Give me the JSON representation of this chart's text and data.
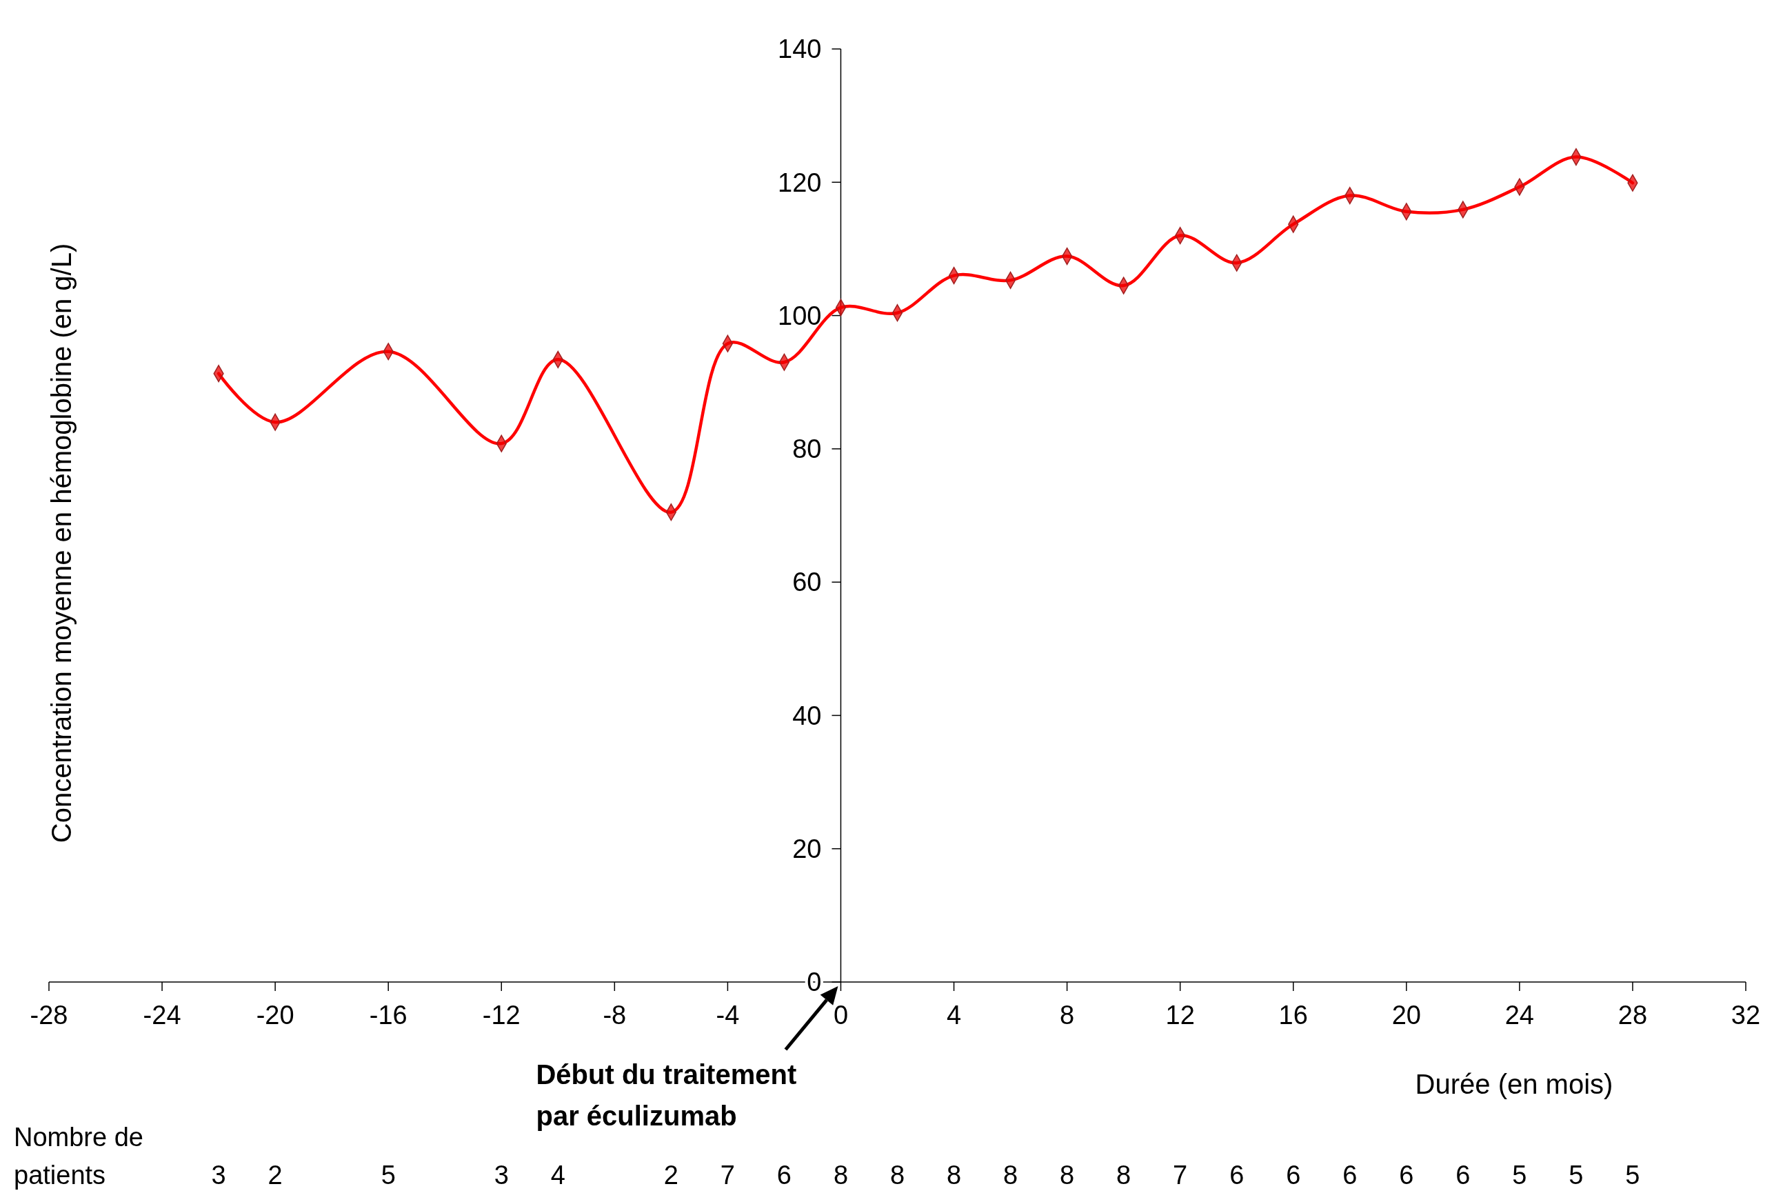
{
  "chart_data": {
    "type": "line",
    "x": [
      -22,
      -20,
      -16,
      -12,
      -10,
      -6,
      -4,
      -2,
      0,
      2,
      4,
      6,
      8,
      10,
      12,
      14,
      16,
      18,
      20,
      22,
      24,
      26,
      28
    ],
    "series": [
      {
        "color": "#ff0000",
        "values": [
          91.3,
          84.0,
          94.6,
          80.8,
          93.4,
          70.5,
          95.8,
          93.0,
          101.2,
          100.4,
          106.0,
          105.3,
          108.9,
          104.5,
          112.0,
          107.9,
          113.7,
          118.0,
          115.6,
          115.9,
          119.3,
          123.8,
          119.9
        ]
      }
    ],
    "marker": "diamond",
    "xlim": [
      -28,
      32
    ],
    "xticks": [
      -28,
      -24,
      -20,
      -16,
      -12,
      -8,
      -4,
      0,
      4,
      8,
      12,
      16,
      20,
      24,
      28,
      32
    ],
    "ylim": [
      0,
      140
    ],
    "yticks": [
      0,
      20,
      40,
      60,
      80,
      100,
      120,
      140
    ],
    "xlabel": "Durée (en mois)",
    "ylabel": "Concentration moyenne en hémoglobine (en g/L)",
    "grid": false,
    "annotations": [
      "Début du traitement par éculizumab",
      "Nombre de patients",
      "3",
      "2",
      "5",
      "3",
      "4",
      "2",
      "7",
      "6",
      "8",
      "8",
      "8",
      "8",
      "8",
      "8",
      "7",
      "6",
      "6",
      "6",
      "6",
      "6",
      "5",
      "5",
      "5"
    ]
  }
}
